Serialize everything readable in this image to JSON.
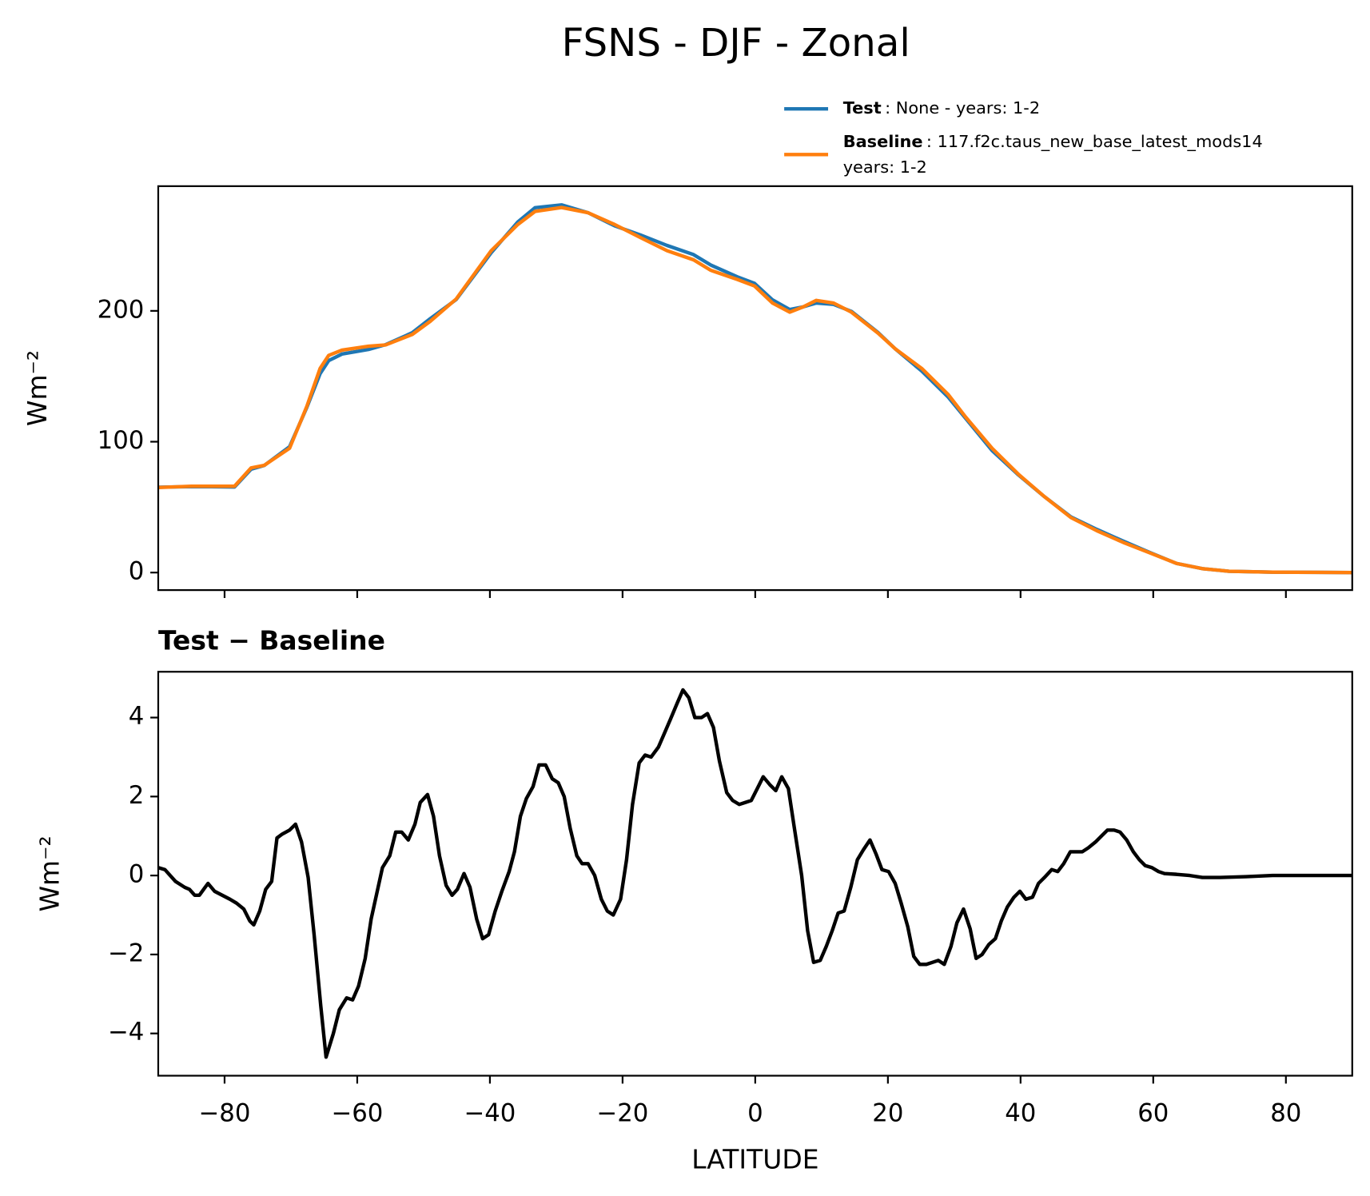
{
  "chart_data": [
    {
      "type": "line",
      "title": "FSNS - DJF - Zonal",
      "y_label": "Wm⁻²",
      "x": [
        -90,
        -85,
        -82,
        -78.5,
        -76,
        -74,
        -70.2,
        -67.6,
        -65.6,
        -64.3,
        -62.3,
        -58.3,
        -55.7,
        -51.7,
        -49,
        -45.1,
        -39.8,
        -35.8,
        -33.2,
        -29.2,
        -25.2,
        -21.2,
        -17.3,
        -13.3,
        -9.3,
        -6.7,
        -2.7,
        -0.1,
        2.6,
        5.2,
        7.2,
        9.2,
        11.8,
        14.5,
        18.5,
        21.1,
        25.1,
        29.1,
        31.7,
        35.7,
        39.7,
        43.6,
        47.6,
        51.5,
        55.5,
        59.5,
        63.5,
        67.4,
        71.4,
        78,
        90
      ],
      "series": [
        {
          "name": "Test",
          "label": ": None - years: 1-2",
          "color": "#1f77b4",
          "values": [
            65.2,
            65.7,
            65.6,
            65.4,
            79,
            81.9,
            96.2,
            126.2,
            152,
            162,
            167,
            170.5,
            174.2,
            183.3,
            194,
            208.6,
            244.5,
            267.9,
            278.8,
            281,
            275,
            265,
            258,
            250,
            243,
            235,
            226,
            221,
            208.4,
            201,
            203,
            206,
            205,
            199.6,
            183.5,
            171,
            154,
            134,
            118,
            93.3,
            74.5,
            58,
            42.5,
            33,
            24,
            15.3,
            7,
            3,
            1,
            0.3,
            0
          ]
        },
        {
          "name": "Baseline",
          "label": ": 117.f2c.taus_new_base_latest_mods14",
          "label2": "years: 1-2",
          "color": "#ff7f0e",
          "values": [
            65,
            66,
            66,
            66,
            80,
            82,
            95,
            127,
            156,
            166,
            170,
            173,
            174,
            182,
            192,
            209,
            246,
            266,
            276,
            279,
            275,
            266,
            256,
            246,
            239,
            231,
            224,
            219,
            206,
            199,
            203,
            208,
            206,
            199,
            183,
            171,
            156,
            136,
            119,
            95,
            75,
            58,
            42,
            32,
            23,
            15,
            7,
            3,
            1,
            0.3,
            0
          ]
        }
      ],
      "xlim": [
        -90,
        90
      ],
      "xticks": [
        -80,
        -60,
        -40,
        -20,
        0,
        20,
        40,
        60,
        80
      ],
      "ylim": [
        -13.4,
        295.3
      ],
      "yticks": [
        0,
        100,
        200
      ]
    },
    {
      "type": "line",
      "title": "Test − Baseline",
      "y_label": "Wm⁻²",
      "x_label": "LATITUDE",
      "color": "#000000",
      "x": [
        -90,
        -89,
        -87.4,
        -86,
        -85.3,
        -84.5,
        -83.8,
        -82.5,
        -81.5,
        -79.2,
        -78.2,
        -77.1,
        -76.2,
        -75.6,
        -74.7,
        -73.8,
        -72.9,
        -72.1,
        -71.3,
        -70.2,
        -69.3,
        -68.4,
        -67.4,
        -66.5,
        -65.5,
        -64.7,
        -63.6,
        -62.7,
        -61.6,
        -60.7,
        -59.8,
        -58.8,
        -57.9,
        -56.2,
        -55.1,
        -54.2,
        -53.3,
        -52.3,
        -51.3,
        -50.5,
        -49.4,
        -48.5,
        -47.6,
        -46.6,
        -45.7,
        -44.9,
        -43.9,
        -43,
        -42,
        -41.1,
        -40.2,
        -39.2,
        -38.2,
        -37.1,
        -36.3,
        -35.4,
        -34.5,
        -33.5,
        -32.6,
        -31.6,
        -30.6,
        -29.7,
        -28.8,
        -27.9,
        -26.9,
        -26.1,
        -25.2,
        -24.2,
        -23.2,
        -22.3,
        -21.4,
        -20.3,
        -19.4,
        -18.5,
        -17.5,
        -16.6,
        -15.7,
        -14.6,
        -13.7,
        -12.8,
        -11.8,
        -10.9,
        -10,
        -9.1,
        -8.1,
        -7.2,
        -6.3,
        -5.4,
        -4.3,
        -3.4,
        -2.4,
        -1.5,
        -0.6,
        0.3,
        1.2,
        2.2,
        3.1,
        4,
        5,
        5.9,
        7,
        7.9,
        8.8,
        9.8,
        10.7,
        11.6,
        12.5,
        13.4,
        14.4,
        15.4,
        16.3,
        17.3,
        18.2,
        19.1,
        20.1,
        21.1,
        22,
        23,
        23.9,
        24.8,
        25.8,
        26.7,
        27.6,
        28.5,
        29.5,
        30.4,
        31.4,
        32.4,
        33.3,
        34.2,
        35.2,
        36.2,
        37.1,
        38,
        39,
        39.9,
        40.8,
        41.8,
        42.7,
        43.6,
        44.7,
        45.6,
        46.5,
        47.5,
        48.4,
        49.3,
        50.2,
        51.3,
        52.2,
        53.1,
        54.1,
        55,
        56,
        57,
        57.9,
        58.8,
        59.8,
        60.8,
        61.7,
        63.5,
        65.5,
        67.4,
        70.1,
        74,
        78,
        83.3,
        89.9
      ],
      "values": [
        0.2,
        0.15,
        -0.15,
        -0.3,
        -0.35,
        -0.5,
        -0.5,
        -0.2,
        -0.4,
        -0.6,
        -0.7,
        -0.85,
        -1.15,
        -1.25,
        -0.9,
        -0.35,
        -0.15,
        0.95,
        1.05,
        1.15,
        1.3,
        0.85,
        -0.05,
        -1.5,
        -3.3,
        -4.6,
        -4,
        -3.4,
        -3.1,
        -3.15,
        -2.8,
        -2.1,
        -1.1,
        0.2,
        0.5,
        1.1,
        1.1,
        0.9,
        1.3,
        1.85,
        2.05,
        1.5,
        0.5,
        -0.25,
        -0.5,
        -0.35,
        0.05,
        -0.3,
        -1.1,
        -1.6,
        -1.5,
        -0.9,
        -0.4,
        0.1,
        0.6,
        1.5,
        1.95,
        2.25,
        2.8,
        2.8,
        2.45,
        2.35,
        2,
        1.2,
        0.5,
        0.3,
        0.3,
        0,
        -0.6,
        -0.9,
        -1,
        -0.6,
        0.4,
        1.8,
        2.85,
        3.05,
        3,
        3.25,
        3.6,
        3.95,
        4.35,
        4.7,
        4.5,
        4,
        4,
        4.1,
        3.75,
        2.9,
        2.1,
        1.9,
        1.8,
        1.85,
        1.9,
        2.2,
        2.5,
        2.3,
        2.15,
        2.5,
        2.2,
        1.2,
        0,
        -1.4,
        -2.2,
        -2.15,
        -1.8,
        -1.4,
        -0.95,
        -0.9,
        -0.3,
        0.4,
        0.65,
        0.9,
        0.55,
        0.15,
        0.1,
        -0.2,
        -0.7,
        -1.3,
        -2.05,
        -2.25,
        -2.25,
        -2.2,
        -2.15,
        -2.25,
        -1.8,
        -1.2,
        -0.85,
        -1.35,
        -2.1,
        -2,
        -1.75,
        -1.6,
        -1.15,
        -0.8,
        -0.55,
        -0.4,
        -0.6,
        -0.55,
        -0.2,
        -0.05,
        0.15,
        0.1,
        0.3,
        0.6,
        0.6,
        0.6,
        0.7,
        0.85,
        1,
        1.15,
        1.15,
        1.1,
        0.9,
        0.6,
        0.4,
        0.25,
        0.2,
        0.1,
        0.05,
        0.03,
        0,
        -0.05,
        -0.05,
        -0.03,
        0,
        0,
        0
      ],
      "xlim": [
        -90,
        90
      ],
      "xticks": [
        {
          "value": -80,
          "label": "−80"
        },
        {
          "value": -60,
          "label": "−60"
        },
        {
          "value": -40,
          "label": "−40"
        },
        {
          "value": -20,
          "label": "−20"
        },
        0,
        20,
        40,
        60,
        80
      ],
      "ylim": [
        -5.07,
        5.16
      ],
      "yticks": [
        {
          "value": -4,
          "label": "−4"
        },
        {
          "value": -2,
          "label": "−2"
        },
        0,
        2,
        4
      ]
    }
  ]
}
